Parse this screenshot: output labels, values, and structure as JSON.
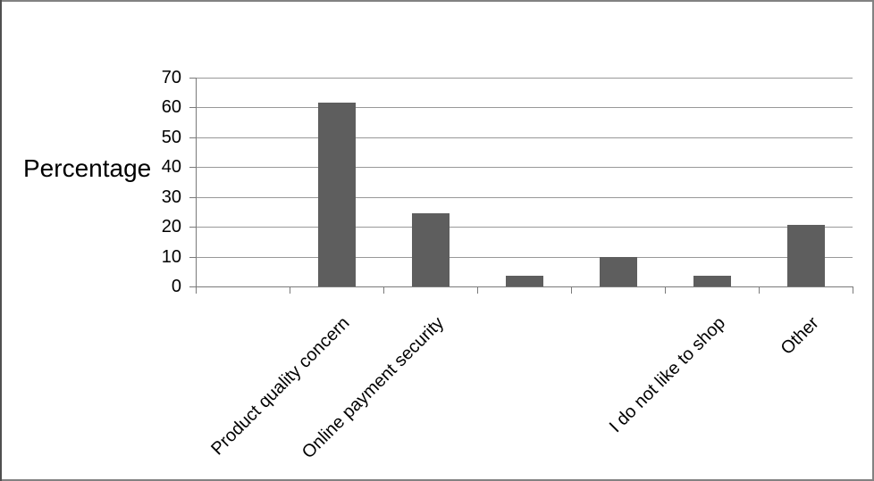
{
  "chart_data": {
    "type": "bar",
    "title": "",
    "xlabel": "",
    "ylabel": "Percentage",
    "categories": [
      "",
      "Product quality concern",
      "Online payment security",
      "",
      "",
      "I do not like to shop",
      "Other"
    ],
    "values": [
      0,
      61.5,
      24.5,
      3.5,
      10,
      3.5,
      20.5
    ],
    "yticks": [
      0,
      10,
      20,
      30,
      40,
      50,
      60,
      70
    ],
    "ylim": [
      0,
      70
    ],
    "grid": true,
    "legend_position": "none",
    "x_label_rotation_deg": 45,
    "colors": {
      "bar": "#5e5e5e",
      "gridline": "#989898",
      "axis": "#7a7a7a",
      "text": "#000000",
      "background": "#ffffff"
    }
  }
}
